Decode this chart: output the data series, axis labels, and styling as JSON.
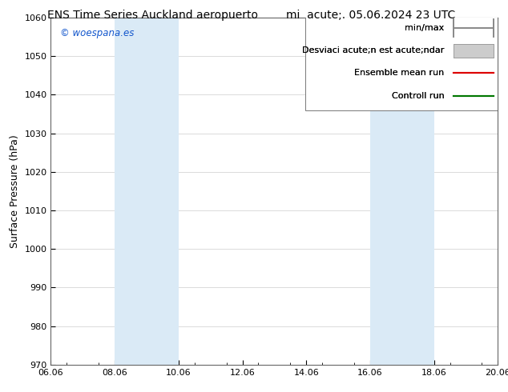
{
  "title_left": "ENS Time Series Auckland aeropuerto",
  "title_right": "mi  acute;. 05.06.2024 23 UTC",
  "ylabel": "Surface Pressure (hPa)",
  "ylim": [
    970,
    1060
  ],
  "yticks": [
    970,
    980,
    990,
    1000,
    1010,
    1020,
    1030,
    1040,
    1050,
    1060
  ],
  "xtick_labels": [
    "06.06",
    "08.06",
    "10.06",
    "12.06",
    "14.06",
    "16.06",
    "18.06",
    "20.06"
  ],
  "xtick_positions": [
    0,
    2,
    4,
    6,
    8,
    10,
    12,
    14
  ],
  "shaded_regions": [
    {
      "x_start": 2,
      "x_end": 4
    },
    {
      "x_start": 10,
      "x_end": 12
    }
  ],
  "shade_color": "#daeaf6",
  "background_color": "#ffffff",
  "watermark": "© woespana.es",
  "watermark_color": "#1155cc",
  "legend_line1": "min/max",
  "legend_line2": "Desviaci acute;n est acute;ndar",
  "legend_line3": "Ensemble mean run",
  "legend_line4": "Controll run",
  "legend_color1": "#888888",
  "legend_color2": "#cccccc",
  "legend_color3": "#dd0000",
  "legend_color4": "#007700",
  "grid_color": "#cccccc",
  "title_fontsize": 10,
  "axis_fontsize": 9,
  "tick_fontsize": 8,
  "legend_fontsize": 8
}
